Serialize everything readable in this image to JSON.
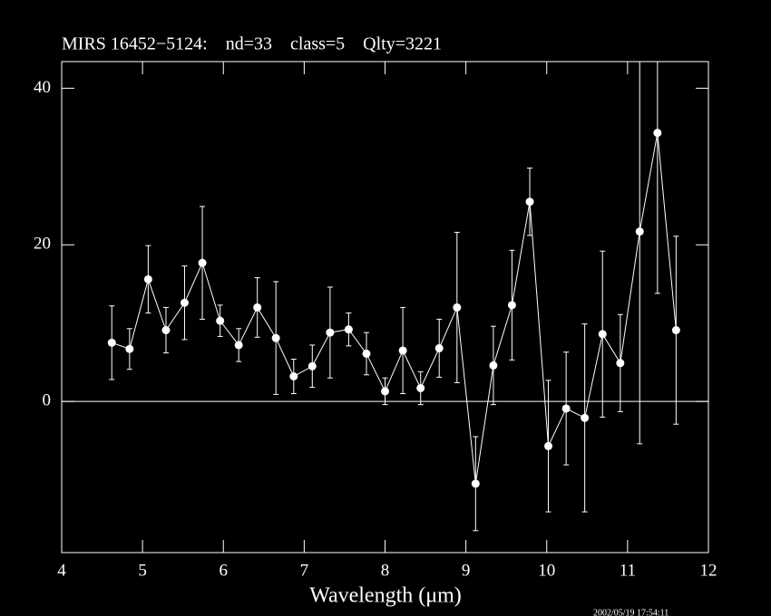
{
  "chart_data": {
    "type": "line",
    "title": "MIRS 16452−5124:    nd=33    class=5    Qlty=3221",
    "x_label": "Wavelength (μm)",
    "timestamp": "2002/05/19 17:54:11",
    "x": [
      4.62,
      4.84,
      5.07,
      5.29,
      5.52,
      5.74,
      5.96,
      6.19,
      6.42,
      6.65,
      6.87,
      7.1,
      7.32,
      7.55,
      7.77,
      8.0,
      8.22,
      8.44,
      8.67,
      8.89,
      9.12,
      9.34,
      9.57,
      9.79,
      10.02,
      10.24,
      10.47,
      10.69,
      10.91,
      11.15,
      11.37,
      11.6
    ],
    "series": [
      {
        "color": "#ffffff",
        "values": [
          7.5,
          6.7,
          15.6,
          9.1,
          12.6,
          17.7,
          10.3,
          7.2,
          12.0,
          8.1,
          3.2,
          4.5,
          8.8,
          9.2,
          6.1,
          1.3,
          6.5,
          1.7,
          6.8,
          12.0,
          -10.5,
          4.6,
          12.3,
          25.5,
          -5.7,
          -0.9,
          -2.1,
          8.6,
          4.9,
          21.7,
          34.3,
          9.1
        ],
        "errors": [
          4.7,
          2.6,
          4.3,
          2.9,
          4.7,
          7.2,
          2.0,
          2.1,
          3.8,
          7.2,
          2.2,
          2.7,
          5.8,
          2.1,
          2.7,
          1.7,
          5.5,
          2.1,
          3.7,
          9.6,
          6.0,
          5.0,
          7.0,
          4.3,
          8.4,
          7.2,
          12.0,
          10.6,
          6.2,
          27.1,
          20.5,
          12.0
        ]
      }
    ],
    "xlim": [
      4,
      12
    ],
    "ylim": [
      -19.3,
      43.4
    ],
    "xticks": [
      4,
      5,
      6,
      7,
      8,
      9,
      10,
      11,
      12
    ],
    "yticks": [
      0,
      20,
      40
    ],
    "zero_line": true
  }
}
